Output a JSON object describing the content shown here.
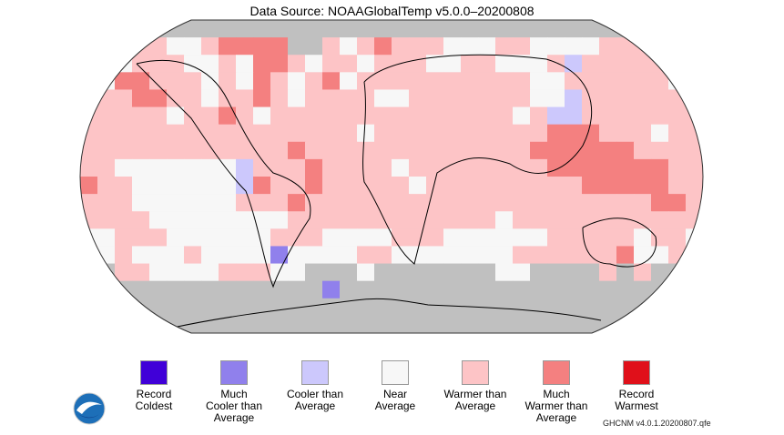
{
  "title": "Data Source: NOAAGlobalTemp v5.0.0–20200808",
  "footer_source": "GHCNM v4.0.1.20200807.qfe",
  "logo_text": "NOAA",
  "legend": [
    {
      "label": "Record\nColdest",
      "color": "#4000d8"
    },
    {
      "label": "Much\nCooler than\nAverage",
      "color": "#9080ec"
    },
    {
      "label": "Cooler than\nAverage",
      "color": "#ccc8fc"
    },
    {
      "label": "Near\nAverage",
      "color": "#f7f7f7"
    },
    {
      "label": "Warmer than\nAverage",
      "color": "#fdc4c6"
    },
    {
      "label": "Much\nWarmer than\nAverage",
      "color": "#f48080"
    },
    {
      "label": "Record\nWarmest",
      "color": "#e0101a"
    }
  ],
  "missing_color": "#c0c0c0",
  "anomaly_grid": {
    "rows": [
      "gggggggggggggggggggggggggggggggggggg",
      "ggg443345555gg434544433344333344444g",
      "443444334355434434443344333424444434",
      "435544434354345344444444443344444434",
      "444554434454344443344444443324444444",
      "444443445434444444444444434224444444",
      "444444444444444434444444444555444344",
      "444444444444544444444444445555554444",
      "443333333244454444344444444555555544",
      "544333333254454444434444444445555544",
      "444333333444544444444444444444444554",
      "444433333333444444444444344444444444",
      "334443333334443333444333333444443443",
      "434333433331333344333333344444453344",
      "gg44333344433ggg3ggggggg33gggg4g4ggg",
      "gggggggggggggg1ggggggggggggggggggggg",
      "gggggggggggggggggggggggggggggggggggg",
      "gggggggggggggggggggggggggggggggggggg"
    ]
  }
}
